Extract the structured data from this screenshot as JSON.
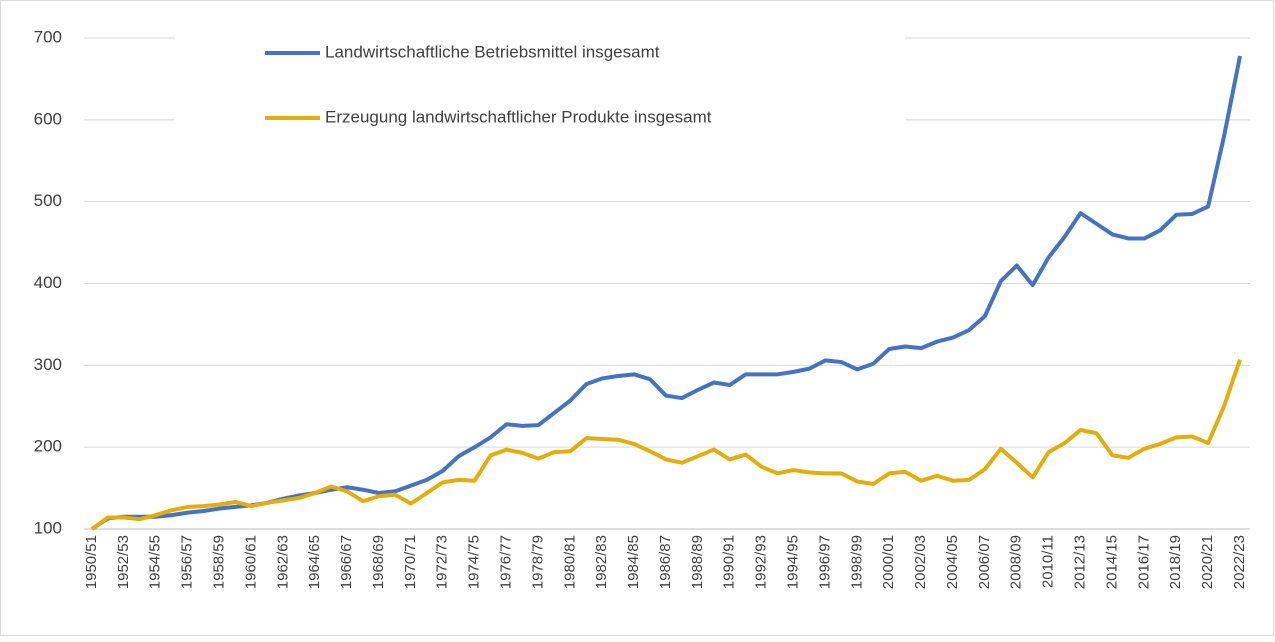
{
  "chart_data": {
    "type": "line",
    "categories": [
      "1950/51",
      null,
      "1952/53",
      null,
      "1954/55",
      null,
      "1956/57",
      null,
      "1958/59",
      null,
      "1960/61",
      null,
      "1962/63",
      null,
      "1964/65",
      null,
      "1966/67",
      null,
      "1968/69",
      null,
      "1970/71",
      null,
      "1972/73",
      null,
      "1974/75",
      null,
      "1976/77",
      null,
      "1978/79",
      null,
      "1980/81",
      null,
      "1982/83",
      null,
      "1984/85",
      null,
      "1986/87",
      null,
      "1988/89",
      null,
      "1990/91",
      null,
      "1992/93",
      null,
      "1994/95",
      null,
      "1996/97",
      null,
      "1998/99",
      null,
      "2000/01",
      null,
      "2002/03",
      null,
      "2004/05",
      null,
      "2006/07",
      null,
      "2008/09",
      null,
      "2010/11",
      null,
      "2012/13",
      null,
      "2014/15",
      null,
      "2016/17",
      null,
      "2018/19",
      null,
      "2020/21",
      null,
      "2022/23"
    ],
    "series": [
      {
        "name": "Landwirtschaftliche Betriebsmittel insgesamt",
        "color": "#4472C4",
        "values": [
          100,
          113,
          115,
          115,
          115,
          117,
          120,
          122,
          125,
          127,
          129,
          132,
          137,
          141,
          144,
          148,
          151,
          148,
          144,
          146,
          153,
          160,
          171,
          189,
          200,
          212,
          228,
          226,
          227,
          242,
          257,
          277,
          284,
          287,
          289,
          283,
          263,
          260,
          270,
          279,
          276,
          289,
          289,
          289,
          292,
          296,
          306,
          304,
          295,
          302,
          320,
          323,
          321,
          329,
          334,
          343,
          360,
          403,
          422,
          398,
          432,
          457,
          486,
          473,
          460,
          455,
          455,
          465,
          484,
          485,
          494,
          580,
          678
        ]
      },
      {
        "name": "Erzeugung landwirtschaftlicher Produkte insgesamt",
        "color": "#E3AE0B",
        "values": [
          100,
          114,
          114,
          112,
          117,
          123,
          127,
          128,
          130,
          133,
          128,
          132,
          135,
          138,
          144,
          152,
          146,
          134,
          140,
          142,
          131,
          144,
          157,
          160,
          159,
          190,
          197,
          193,
          186,
          194,
          195,
          211,
          210,
          209,
          204,
          195,
          185,
          181,
          189,
          197,
          185,
          191,
          176,
          168,
          172,
          169,
          168,
          168,
          158,
          155,
          168,
          170,
          159,
          165,
          159,
          160,
          173,
          198,
          181,
          163,
          194,
          205,
          221,
          217,
          190,
          187,
          198,
          204,
          212,
          213,
          205,
          250,
          307
        ]
      }
    ],
    "ylim": [
      100,
      700
    ],
    "yticks": [
      100,
      200,
      300,
      400,
      500,
      600,
      700
    ],
    "grid": true
  }
}
